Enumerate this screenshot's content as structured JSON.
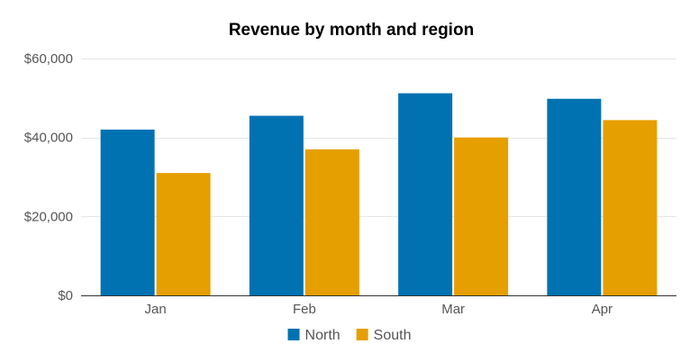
{
  "chart_data": {
    "type": "bar",
    "title": "Revenue by month and region",
    "xlabel": "",
    "ylabel": "",
    "categories": [
      "Jan",
      "Feb",
      "Mar",
      "Apr"
    ],
    "series": [
      {
        "name": "North",
        "color": "#0072b2",
        "values": [
          42000,
          45500,
          51200,
          49800
        ]
      },
      {
        "name": "South",
        "color": "#e69f00",
        "values": [
          31000,
          37000,
          40000,
          44400
        ]
      }
    ],
    "ylim": [
      0,
      60000
    ],
    "yticks": [
      0,
      20000,
      40000,
      60000
    ],
    "ytick_labels": [
      "$0",
      "$20,000",
      "$40,000",
      "$60,000"
    ],
    "grid": true,
    "legend_position": "bottom"
  }
}
